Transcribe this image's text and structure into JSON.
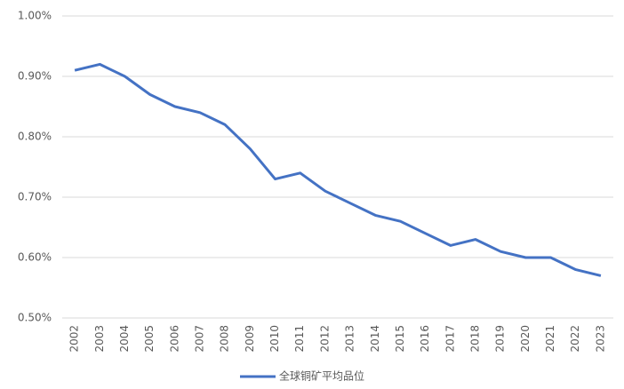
{
  "chart_data": {
    "type": "line",
    "categories": [
      "2002",
      "2003",
      "2004",
      "2005",
      "2006",
      "2007",
      "2008",
      "2009",
      "2010",
      "2011",
      "2012",
      "2013",
      "2014",
      "2015",
      "2016",
      "2017",
      "2018",
      "2019",
      "2020",
      "2021",
      "2022",
      "2023"
    ],
    "series": [
      {
        "name": "全球铜矿平均品位",
        "color": "#4472c4",
        "values": [
          0.91,
          0.92,
          0.9,
          0.87,
          0.85,
          0.84,
          0.82,
          0.78,
          0.73,
          0.74,
          0.71,
          0.69,
          0.67,
          0.66,
          0.64,
          0.62,
          0.63,
          0.61,
          0.6,
          0.6,
          0.58,
          0.57
        ]
      }
    ],
    "ylim": [
      0.5,
      1.0
    ],
    "yticks": [
      {
        "value": 0.5,
        "label": "0.50%"
      },
      {
        "value": 0.6,
        "label": "0.60%"
      },
      {
        "value": 0.7,
        "label": "0.70%"
      },
      {
        "value": 0.8,
        "label": "0.80%"
      },
      {
        "value": 0.9,
        "label": "0.90%"
      },
      {
        "value": 1.0,
        "label": "1.00%"
      }
    ],
    "grid": true,
    "legend": "bottom"
  }
}
